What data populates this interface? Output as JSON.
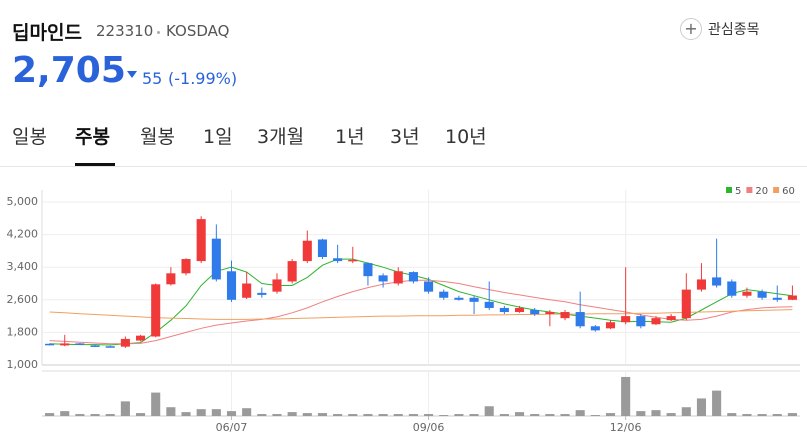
{
  "header": {
    "name": "딥마인드",
    "code": "223310",
    "market": "KOSDAQ",
    "watch": "관심종목"
  },
  "price": {
    "value": "2,705",
    "change": "55",
    "change_pct": "(-1.99%)"
  },
  "tabs": [
    "일봉",
    "주봉",
    "월봉",
    "1일",
    "3개월",
    "1년",
    "3년",
    "10년"
  ],
  "chart_data": {
    "type": "candlestick",
    "categories": [
      null,
      null,
      null,
      null,
      null,
      null,
      null,
      null,
      null,
      null,
      null,
      null,
      "06/07",
      null,
      null,
      null,
      null,
      null,
      null,
      null,
      null,
      null,
      null,
      null,
      null,
      "09/06",
      null,
      null,
      null,
      null,
      null,
      null,
      null,
      null,
      null,
      null,
      null,
      null,
      "12/06",
      null,
      null,
      null,
      null,
      null,
      null,
      null,
      null,
      null,
      null,
      null
    ],
    "open": [
      1520,
      1480,
      1530,
      1480,
      1460,
      1450,
      1600,
      1700,
      2980,
      3250,
      3550,
      4100,
      3300,
      2650,
      2770,
      2800,
      3050,
      3550,
      4080,
      3620,
      3550,
      3500,
      3200,
      3000,
      3280,
      3050,
      2800,
      2650,
      2650,
      2550,
      2400,
      2300,
      2350,
      2250,
      2150,
      2300,
      1950,
      1900,
      2050,
      2200,
      2000,
      2100,
      2150,
      2850,
      3150,
      3050,
      2700,
      2800,
      2650,
      2600
    ],
    "high": [
      1530,
      1740,
      1540,
      1500,
      1470,
      1700,
      1740,
      3000,
      3400,
      3620,
      4650,
      4450,
      3560,
      3280,
      2900,
      3250,
      3600,
      4300,
      4100,
      3950,
      3900,
      3520,
      3250,
      3400,
      3300,
      3150,
      2850,
      2700,
      2700,
      3050,
      2450,
      2450,
      2400,
      2350,
      2350,
      2800,
      1980,
      2100,
      3400,
      2250,
      2200,
      2250,
      3250,
      3500,
      4100,
      3100,
      2900,
      2850,
      2950,
      2950
    ],
    "low": [
      1480,
      1460,
      1490,
      1440,
      1430,
      1420,
      1580,
      1680,
      2950,
      3200,
      3500,
      3050,
      2550,
      2620,
      2650,
      2750,
      3000,
      3500,
      3600,
      3500,
      3500,
      2950,
      2900,
      2950,
      3000,
      2750,
      2600,
      2580,
      2250,
      2350,
      2250,
      2280,
      2200,
      1950,
      2100,
      1900,
      1820,
      1880,
      2000,
      1900,
      1980,
      2080,
      2100,
      2800,
      2900,
      2650,
      2650,
      2600,
      2550,
      2590
    ],
    "close": [
      1490,
      1530,
      1500,
      1450,
      1440,
      1640,
      1720,
      2980,
      3250,
      3600,
      4580,
      3100,
      2600,
      3000,
      2720,
      3100,
      3550,
      4050,
      3650,
      3550,
      3580,
      3180,
      3050,
      3300,
      3050,
      2800,
      2650,
      2600,
      2550,
      2400,
      2300,
      2400,
      2250,
      2300,
      2300,
      1950,
      1850,
      2050,
      2200,
      1950,
      2150,
      2200,
      2850,
      3100,
      2950,
      2700,
      2800,
      2650,
      2600,
      2705
    ],
    "up_color": "#f03a3a",
    "down_color": "#2f7bea",
    "ylim": [
      1000,
      5000
    ],
    "yticks": [
      {
        "value": 1000,
        "label": "1,000"
      },
      {
        "value": 1800,
        "label": "1,800"
      },
      {
        "value": 2600,
        "label": "2,600"
      },
      {
        "value": 3400,
        "label": "3,400"
      },
      {
        "value": 4200,
        "label": "4,200"
      },
      {
        "value": 5000,
        "label": "5,000"
      }
    ],
    "grid": true,
    "moving_averages": [
      {
        "name": "5",
        "color": "#2db52d",
        "values": [
          1520,
          1510,
          1500,
          1500,
          1490,
          1520,
          1550,
          1800,
          2100,
          2450,
          2950,
          3300,
          3400,
          3280,
          3000,
          2950,
          2950,
          3150,
          3450,
          3600,
          3600,
          3500,
          3400,
          3280,
          3200,
          3100,
          2950,
          2800,
          2700,
          2600,
          2500,
          2420,
          2350,
          2300,
          2250,
          2200,
          2150,
          2100,
          2060,
          2070,
          2060,
          2050,
          2150,
          2350,
          2550,
          2750,
          2850,
          2800,
          2750,
          2700
        ]
      },
      {
        "name": "20",
        "color": "#f08080",
        "values": [
          1600,
          1580,
          1560,
          1540,
          1520,
          1520,
          1530,
          1600,
          1700,
          1800,
          1900,
          1980,
          2030,
          2080,
          2120,
          2180,
          2280,
          2400,
          2550,
          2680,
          2800,
          2900,
          2980,
          3040,
          3080,
          3080,
          3050,
          3000,
          2920,
          2850,
          2780,
          2720,
          2660,
          2600,
          2550,
          2480,
          2420,
          2360,
          2300,
          2230,
          2170,
          2120,
          2100,
          2120,
          2200,
          2300,
          2360,
          2400,
          2420,
          2430
        ]
      },
      {
        "name": "60",
        "color": "#f0a060",
        "values": [
          2300,
          2280,
          2260,
          2240,
          2220,
          2200,
          2180,
          2160,
          2150,
          2140,
          2130,
          2120,
          2120,
          2120,
          2130,
          2130,
          2140,
          2150,
          2160,
          2170,
          2180,
          2190,
          2200,
          2200,
          2210,
          2210,
          2210,
          2220,
          2220,
          2230,
          2230,
          2240,
          2240,
          2250,
          2250,
          2250,
          2260,
          2260,
          2260,
          2270,
          2270,
          2280,
          2290,
          2300,
          2310,
          2320,
          2330,
          2340,
          2350,
          2360
        ]
      }
    ],
    "legend": "top-right",
    "volume": {
      "color": "#9a9a9a",
      "ylim": [
        0,
        42
      ],
      "values": [
        3,
        5,
        2,
        2,
        2,
        15,
        3,
        24,
        9,
        4,
        7,
        7,
        5,
        8,
        2,
        2,
        4,
        3,
        3,
        2,
        2,
        2,
        2,
        2,
        2,
        2,
        1,
        2,
        2,
        10,
        2,
        4,
        2,
        2,
        2,
        6,
        1,
        3,
        40,
        5,
        6,
        3,
        9,
        18,
        26,
        3,
        2,
        2,
        2,
        3
      ]
    }
  }
}
